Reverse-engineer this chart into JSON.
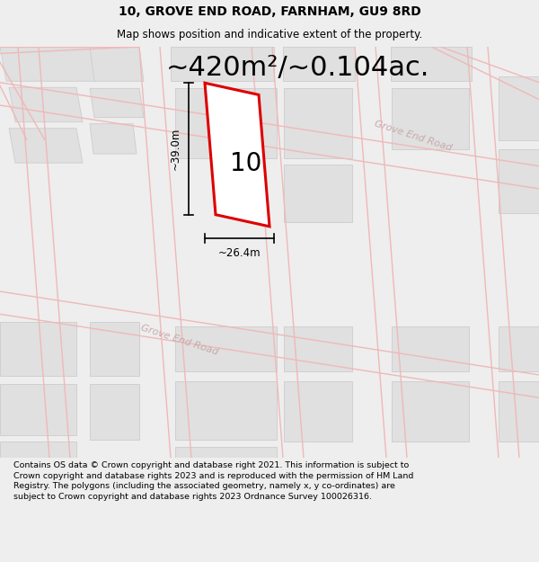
{
  "title_line1": "10, GROVE END ROAD, FARNHAM, GU9 8RD",
  "title_line2": "Map shows position and indicative extent of the property.",
  "area_text": "~420m²/~0.104ac.",
  "property_number": "10",
  "dim_height": "~39.0m",
  "dim_width": "~26.4m",
  "road_label_upper": "Grove End Road",
  "road_label_lower": "Grove End Road",
  "footer_text": "Contains OS data © Crown copyright and database right 2021. This information is subject to Crown copyright and database rights 2023 and is reproduced with the permission of HM Land Registry. The polygons (including the associated geometry, namely x, y co-ordinates) are subject to Crown copyright and database rights 2023 Ordnance Survey 100026316.",
  "bg_color": "#eeeeee",
  "map_bg": "#f8f8f8",
  "property_fill": "#ffffff",
  "property_edge": "#dd0000",
  "road_line_color": "#f0b8b8",
  "block_fill": "#e0e0e0",
  "block_edge": "#cccccc",
  "road_text_color": "#c8aaaa",
  "title_fontsize": 10,
  "subtitle_fontsize": 8.5,
  "area_fontsize": 22,
  "dim_fontsize": 8.5,
  "property_num_fontsize": 20,
  "footer_fontsize": 6.8
}
